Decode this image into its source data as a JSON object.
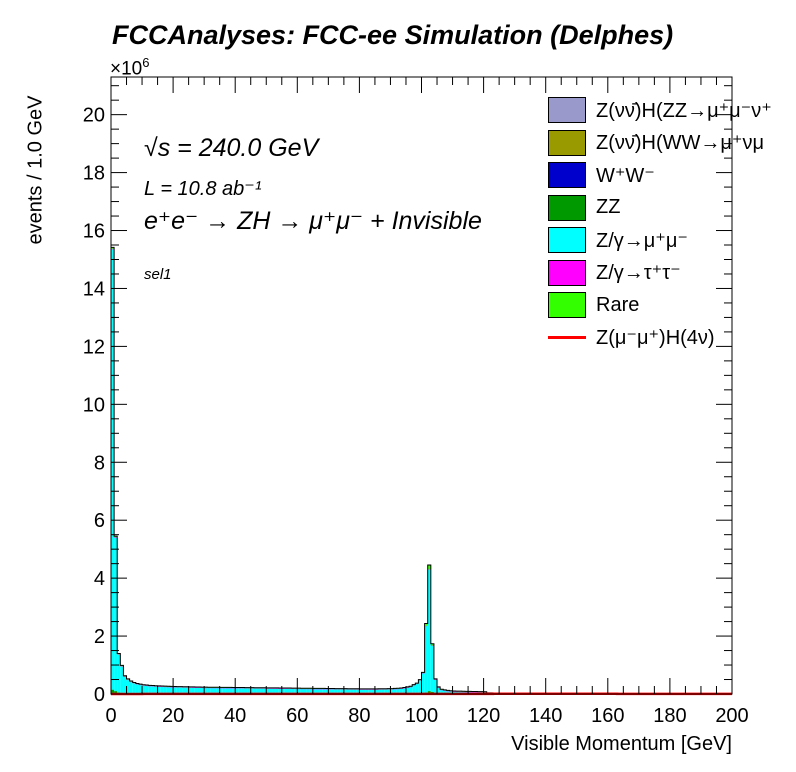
{
  "chart_data": {
    "type": "bar",
    "title": "FCCAnalyses: FCC-ee Simulation (Delphes)",
    "xlabel": "Visible Momentum [GeV]",
    "ylabel": "events / 1.0 GeV",
    "y_multiplier": "×10",
    "y_multiplier_exp": "6",
    "xlim": [
      0,
      200
    ],
    "ylim": [
      0,
      21.3
    ],
    "x_ticks": [
      "0",
      "20",
      "40",
      "60",
      "80",
      "100",
      "120",
      "140",
      "160",
      "180",
      "200"
    ],
    "y_ticks": [
      "0",
      "2",
      "4",
      "6",
      "8",
      "10",
      "12",
      "14",
      "16",
      "18",
      "20"
    ],
    "annotations": [
      "√s = 240.0 GeV",
      "L = 10.8 ab⁻¹",
      "e⁺e⁻ → ZH → μ⁺μ⁻ + Invisible",
      "sel1"
    ],
    "stacked": true,
    "bin_width": 1,
    "series": [
      {
        "name": "Z(νν̄)H(ZZ→μ⁺μ⁻ν⁺",
        "color": "#9999cc",
        "kind": "fill",
        "points": [
          [
            0,
            0
          ],
          [
            200,
            0
          ]
        ]
      },
      {
        "name": "Z(νν̄)H(WW→μ⁺νμ",
        "color": "#999900",
        "kind": "fill",
        "points": [
          [
            0,
            0
          ],
          [
            200,
            0
          ]
        ]
      },
      {
        "name": "W⁺W⁻",
        "color": "#0000cc",
        "kind": "fill",
        "points": [
          [
            0,
            0
          ],
          [
            200,
            0
          ]
        ]
      },
      {
        "name": "ZZ",
        "color": "#009900",
        "kind": "fill",
        "points": [
          [
            0,
            0.15
          ],
          [
            1,
            0.1
          ],
          [
            2,
            0.05
          ],
          [
            5,
            0.03
          ],
          [
            100,
            0.02
          ],
          [
            101,
            0.05
          ],
          [
            102,
            0.1
          ],
          [
            103,
            0.07
          ],
          [
            105,
            0.02
          ],
          [
            200,
            0
          ]
        ]
      },
      {
        "name": "Z/γ→μ⁺μ⁻",
        "color": "#00ffff",
        "kind": "fill",
        "points": [
          [
            0,
            15.2
          ],
          [
            1,
            5.3
          ],
          [
            2,
            1.3
          ],
          [
            3,
            0.9
          ],
          [
            4,
            0.55
          ],
          [
            5,
            0.45
          ],
          [
            6,
            0.38
          ],
          [
            7,
            0.33
          ],
          [
            8,
            0.3
          ],
          [
            9,
            0.28
          ],
          [
            10,
            0.26
          ],
          [
            12,
            0.24
          ],
          [
            15,
            0.22
          ],
          [
            20,
            0.2
          ],
          [
            30,
            0.18
          ],
          [
            40,
            0.17
          ],
          [
            50,
            0.16
          ],
          [
            60,
            0.15
          ],
          [
            70,
            0.14
          ],
          [
            80,
            0.13
          ],
          [
            85,
            0.13
          ],
          [
            90,
            0.14
          ],
          [
            93,
            0.16
          ],
          [
            95,
            0.2
          ],
          [
            96,
            0.22
          ],
          [
            97,
            0.28
          ],
          [
            98,
            0.33
          ],
          [
            99,
            0.45
          ],
          [
            100,
            0.7
          ],
          [
            101,
            2.3
          ],
          [
            102,
            4.2
          ],
          [
            103,
            1.6
          ],
          [
            104,
            0.45
          ],
          [
            105,
            0.2
          ],
          [
            106,
            0.12
          ],
          [
            108,
            0.08
          ],
          [
            110,
            0.06
          ],
          [
            115,
            0.05
          ],
          [
            120,
            0.04
          ],
          [
            121,
            0.0
          ],
          [
            200,
            0
          ]
        ]
      },
      {
        "name": "Z/γ→τ⁺τ⁻",
        "color": "#ff00ff",
        "kind": "fill",
        "points": [
          [
            0,
            0.02
          ],
          [
            10,
            0.01
          ],
          [
            200,
            0
          ]
        ]
      },
      {
        "name": "Rare",
        "color": "#33ff00",
        "kind": "fill",
        "points": [
          [
            0,
            0.05
          ],
          [
            1,
            0.03
          ],
          [
            10,
            0.02
          ],
          [
            100,
            0.02
          ],
          [
            101,
            0.08
          ],
          [
            102,
            0.15
          ],
          [
            103,
            0.06
          ],
          [
            104,
            0.02
          ],
          [
            200,
            0
          ]
        ]
      },
      {
        "name": "Z(μ⁻μ⁺)H(4ν)",
        "color": "#ff0000",
        "kind": "line",
        "points": [
          [
            0,
            0.002
          ],
          [
            120,
            0.004
          ],
          [
            125,
            0.01
          ],
          [
            200,
            0.003
          ]
        ]
      }
    ]
  }
}
